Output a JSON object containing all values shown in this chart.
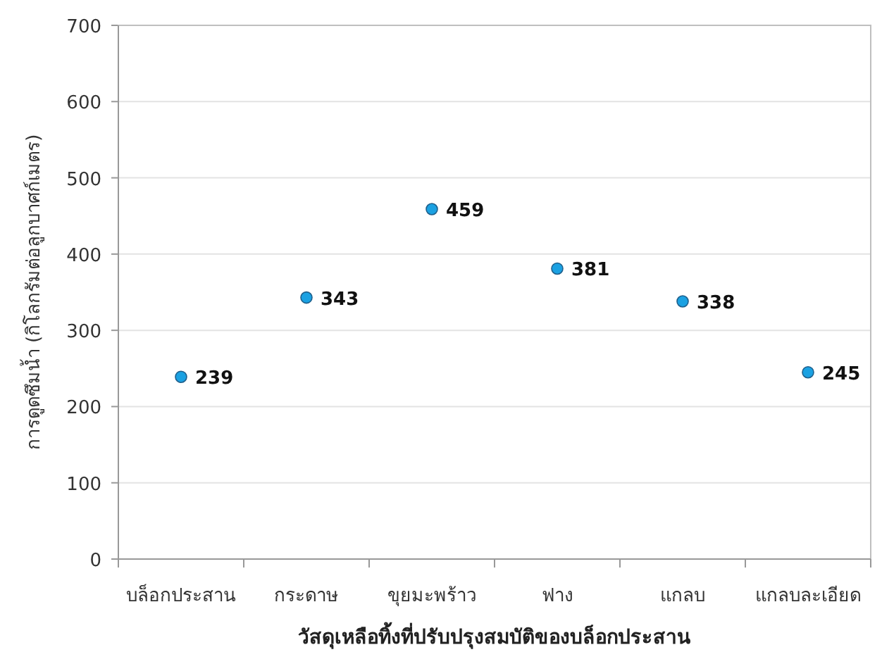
{
  "chart_data": {
    "type": "scatter",
    "xlabel": "วัสดุเหลือทิ้งที่ปรับปรุงสมบัติของบล็อกประสาน",
    "ylabel": "การดูดซึมน้ำ (กิโลกรัมต่อลูกบาศก์เมตร)",
    "categories": [
      "บล็อกประสาน",
      "กระดาษ",
      "ขุยมะพร้าว",
      "ฟาง",
      "แกลบ",
      "แกลบละเอียด"
    ],
    "series": [
      {
        "color": "#1ba1e2",
        "values": [
          239,
          343,
          459,
          381,
          338,
          245
        ]
      }
    ],
    "ylim": [
      0,
      700
    ],
    "yticks": [
      0,
      100,
      200,
      300,
      400,
      500,
      600,
      700
    ],
    "grid": "y",
    "marker": "circle",
    "data_labels": true
  }
}
